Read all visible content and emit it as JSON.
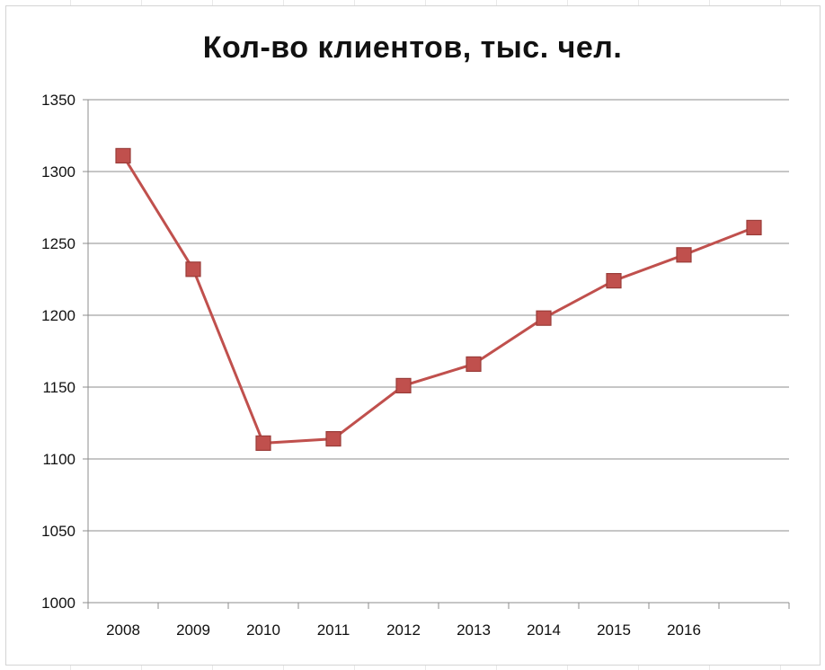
{
  "chart_data": {
    "type": "line",
    "title": "Кол-во клиентов, тыс. чел.",
    "xlabel": "",
    "ylabel": "",
    "categories": [
      "2008",
      "2009",
      "2010",
      "2011",
      "2012",
      "2013",
      "2014",
      "2015",
      "2016",
      ""
    ],
    "series": [
      {
        "values": [
          1311,
          1232,
          1111,
          1114,
          1151,
          1166,
          1198,
          1224,
          1242,
          1261
        ]
      }
    ],
    "ylim": [
      1000,
      1350
    ],
    "yticks": [
      1000,
      1050,
      1100,
      1150,
      1200,
      1250,
      1300,
      1350
    ],
    "grid": "horizontal",
    "legend": "none",
    "colors": {
      "line": "#c0504d",
      "marker": "#c0504d",
      "grid": "#8c8c8c"
    }
  }
}
